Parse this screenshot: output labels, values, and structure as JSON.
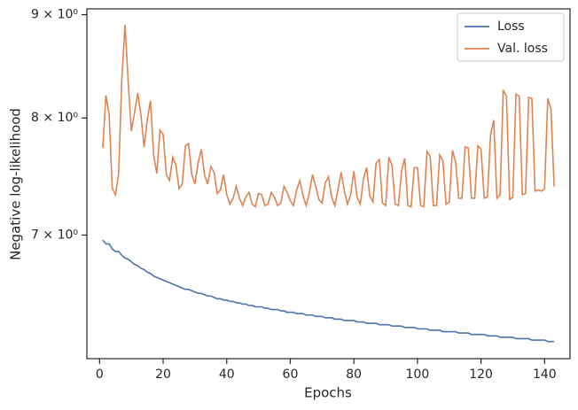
{
  "chart_data": {
    "type": "line",
    "xlabel": "Epochs",
    "ylabel": "Negative log-likelihood",
    "yscale": "log",
    "legend": "upper right",
    "xlim": [
      -4,
      148
    ],
    "ylim": [
      6.08,
      9.06
    ],
    "xticks": [
      0,
      20,
      40,
      60,
      80,
      100,
      120,
      140
    ],
    "yticks": [
      {
        "value": 7,
        "label": "7 × 10⁰"
      },
      {
        "value": 8,
        "label": "8 × 10⁰"
      },
      {
        "value": 9,
        "label": "9 × 10⁰"
      }
    ],
    "x": [
      1,
      2,
      3,
      4,
      5,
      6,
      7,
      8,
      9,
      10,
      11,
      12,
      13,
      14,
      15,
      16,
      17,
      18,
      19,
      20,
      21,
      22,
      23,
      24,
      25,
      26,
      27,
      28,
      29,
      30,
      31,
      32,
      33,
      34,
      35,
      36,
      37,
      38,
      39,
      40,
      41,
      42,
      43,
      44,
      45,
      46,
      47,
      48,
      49,
      50,
      51,
      52,
      53,
      54,
      55,
      56,
      57,
      58,
      59,
      60,
      61,
      62,
      63,
      64,
      65,
      66,
      67,
      68,
      69,
      70,
      71,
      72,
      73,
      74,
      75,
      76,
      77,
      78,
      79,
      80,
      81,
      82,
      83,
      84,
      85,
      86,
      87,
      88,
      89,
      90,
      91,
      92,
      93,
      94,
      95,
      96,
      97,
      98,
      99,
      100,
      101,
      102,
      103,
      104,
      105,
      106,
      107,
      108,
      109,
      110,
      111,
      112,
      113,
      114,
      115,
      116,
      117,
      118,
      119,
      120,
      121,
      122,
      123,
      124,
      125,
      126,
      127,
      128,
      129,
      130,
      131,
      132,
      133,
      134,
      135,
      136,
      137,
      138,
      139,
      140,
      141,
      142,
      143
    ],
    "series": [
      {
        "name": "Loss",
        "color": "#4c72b0",
        "values": [
          6.96,
          6.93,
          6.93,
          6.89,
          6.87,
          6.87,
          6.84,
          6.82,
          6.81,
          6.79,
          6.77,
          6.76,
          6.74,
          6.73,
          6.71,
          6.7,
          6.68,
          6.67,
          6.66,
          6.65,
          6.64,
          6.63,
          6.62,
          6.61,
          6.6,
          6.59,
          6.58,
          6.58,
          6.57,
          6.56,
          6.55,
          6.55,
          6.54,
          6.53,
          6.53,
          6.52,
          6.51,
          6.51,
          6.5,
          6.5,
          6.49,
          6.49,
          6.48,
          6.48,
          6.47,
          6.47,
          6.46,
          6.46,
          6.45,
          6.45,
          6.45,
          6.44,
          6.44,
          6.43,
          6.43,
          6.43,
          6.42,
          6.42,
          6.41,
          6.41,
          6.41,
          6.4,
          6.4,
          6.4,
          6.39,
          6.39,
          6.39,
          6.38,
          6.38,
          6.38,
          6.37,
          6.37,
          6.37,
          6.36,
          6.36,
          6.36,
          6.35,
          6.35,
          6.35,
          6.35,
          6.34,
          6.34,
          6.34,
          6.33,
          6.33,
          6.33,
          6.33,
          6.32,
          6.32,
          6.32,
          6.32,
          6.31,
          6.31,
          6.31,
          6.31,
          6.3,
          6.3,
          6.3,
          6.3,
          6.29,
          6.29,
          6.29,
          6.29,
          6.28,
          6.28,
          6.28,
          6.28,
          6.27,
          6.27,
          6.27,
          6.27,
          6.27,
          6.26,
          6.26,
          6.26,
          6.26,
          6.25,
          6.25,
          6.25,
          6.25,
          6.25,
          6.24,
          6.24,
          6.24,
          6.24,
          6.23,
          6.23,
          6.23,
          6.23,
          6.23,
          6.22,
          6.22,
          6.22,
          6.22,
          6.22,
          6.21,
          6.21,
          6.21,
          6.21,
          6.21,
          6.2,
          6.2,
          6.2
        ]
      },
      {
        "name": "Val. loss",
        "color": "#dd8452",
        "values": [
          7.73,
          8.21,
          8.03,
          7.38,
          7.33,
          7.51,
          8.37,
          8.9,
          8.33,
          7.88,
          8.05,
          8.23,
          8.03,
          7.74,
          7.98,
          8.16,
          7.67,
          7.51,
          7.89,
          7.85,
          7.5,
          7.45,
          7.65,
          7.58,
          7.38,
          7.42,
          7.75,
          7.77,
          7.5,
          7.42,
          7.6,
          7.72,
          7.5,
          7.42,
          7.57,
          7.52,
          7.34,
          7.37,
          7.5,
          7.33,
          7.25,
          7.3,
          7.4,
          7.3,
          7.24,
          7.31,
          7.35,
          7.25,
          7.23,
          7.34,
          7.33,
          7.24,
          7.25,
          7.35,
          7.31,
          7.24,
          7.26,
          7.4,
          7.35,
          7.28,
          7.24,
          7.37,
          7.45,
          7.32,
          7.24,
          7.35,
          7.5,
          7.4,
          7.29,
          7.26,
          7.43,
          7.48,
          7.31,
          7.24,
          7.37,
          7.52,
          7.36,
          7.25,
          7.33,
          7.53,
          7.31,
          7.25,
          7.46,
          7.56,
          7.32,
          7.27,
          7.6,
          7.63,
          7.26,
          7.24,
          7.65,
          7.58,
          7.25,
          7.24,
          7.53,
          7.64,
          7.24,
          7.23,
          7.56,
          7.56,
          7.24,
          7.23,
          7.7,
          7.66,
          7.24,
          7.24,
          7.67,
          7.62,
          7.25,
          7.27,
          7.71,
          7.61,
          7.3,
          7.3,
          7.74,
          7.73,
          7.3,
          7.3,
          7.75,
          7.72,
          7.3,
          7.31,
          7.85,
          7.98,
          7.3,
          7.33,
          8.26,
          8.2,
          7.29,
          7.31,
          8.22,
          8.2,
          7.33,
          7.34,
          8.19,
          8.18,
          7.36,
          7.37,
          7.36,
          7.38,
          8.18,
          8.08,
          7.4
        ]
      }
    ]
  }
}
